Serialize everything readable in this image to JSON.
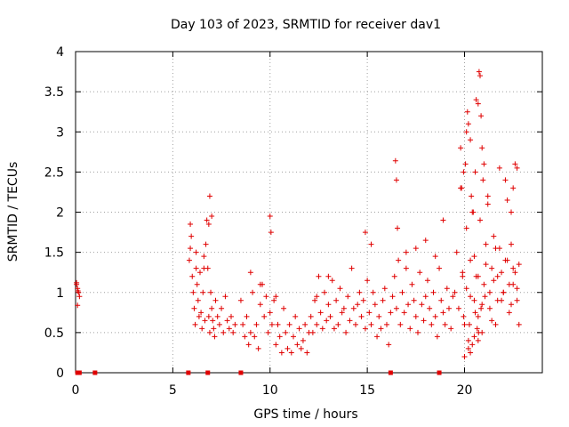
{
  "chart_data": {
    "type": "scatter",
    "title": "Day 103 of 2023, SRMTID for receiver dav1",
    "xlabel": "GPS time / hours",
    "ylabel": "SRMTID / TECUs",
    "xlim": [
      0,
      24
    ],
    "ylim": [
      0,
      4
    ],
    "xticks": [
      0,
      5,
      10,
      15,
      20
    ],
    "xtick_labels": [
      "0",
      "5",
      "10",
      "15",
      "20"
    ],
    "yticks": [
      0,
      0.5,
      1,
      1.5,
      2,
      2.5,
      3,
      3.5,
      4
    ],
    "ytick_labels": [
      "0",
      "0.5",
      "1",
      "1.5",
      "2",
      "2.5",
      "3",
      "3.5",
      "4"
    ],
    "grid": true,
    "series": [
      {
        "name": "SRMTID",
        "color": "#e00000",
        "marker": "+",
        "x": [
          0.05,
          0.1,
          0.15,
          0.2,
          0.05,
          0.1,
          0.12,
          5.85,
          5.9,
          5.95,
          6.0,
          6.05,
          6.1,
          6.15,
          6.2,
          6.25,
          6.3,
          6.35,
          6.4,
          6.45,
          6.5,
          6.55,
          6.6,
          6.65,
          6.7,
          6.75,
          6.8,
          6.85,
          6.9,
          6.95,
          7.0,
          7.05,
          7.1,
          7.15,
          7.2,
          7.3,
          7.4,
          7.5,
          7.6,
          7.7,
          7.8,
          7.9,
          8.0,
          8.1,
          8.2,
          5.9,
          6.2,
          6.6,
          6.9,
          6.85,
          7.0,
          8.5,
          8.6,
          8.7,
          8.8,
          8.9,
          9.0,
          9.1,
          9.2,
          9.3,
          9.4,
          9.5,
          9.6,
          9.7,
          9.8,
          9.9,
          10.0,
          10.1,
          10.2,
          10.3,
          10.4,
          10.5,
          10.6,
          10.7,
          10.8,
          10.9,
          11.0,
          11.1,
          11.2,
          11.3,
          11.4,
          11.5,
          11.6,
          11.7,
          11.8,
          11.9,
          12.0,
          9.0,
          9.5,
          10.0,
          10.05,
          10.3,
          12.1,
          12.2,
          12.3,
          12.4,
          12.5,
          12.6,
          12.7,
          12.8,
          12.9,
          13.0,
          13.1,
          13.2,
          13.3,
          13.4,
          13.5,
          13.6,
          13.7,
          13.8,
          13.9,
          14.0,
          14.1,
          14.2,
          14.3,
          14.4,
          14.5,
          14.6,
          14.7,
          14.8,
          14.9,
          15.0,
          15.1,
          15.2,
          15.3,
          15.4,
          15.5,
          15.6,
          15.7,
          15.8,
          15.9,
          16.0,
          16.1,
          16.2,
          14.9,
          15.2,
          13.0,
          12.4,
          16.3,
          16.4,
          16.5,
          16.6,
          16.7,
          16.8,
          16.9,
          17.0,
          17.1,
          17.2,
          17.3,
          17.4,
          17.5,
          17.6,
          17.7,
          17.8,
          17.9,
          18.0,
          18.1,
          18.2,
          18.3,
          18.4,
          18.5,
          18.6,
          18.7,
          18.8,
          18.9,
          19.0,
          19.1,
          19.2,
          19.3,
          19.4,
          16.45,
          16.5,
          16.55,
          17.0,
          17.5,
          18.0,
          18.5,
          18.9,
          19.5,
          19.6,
          19.7,
          19.8,
          19.9,
          20.0,
          20.1,
          20.2,
          20.3,
          20.4,
          20.5,
          20.6,
          20.7,
          20.8,
          20.9,
          21.0,
          21.1,
          21.2,
          21.3,
          21.4,
          21.5,
          21.6,
          21.7,
          21.8,
          21.9,
          22.0,
          22.1,
          22.2,
          22.3,
          22.4,
          22.5,
          22.6,
          22.7,
          22.8,
          19.8,
          19.85,
          19.95,
          20.05,
          20.1,
          20.15,
          20.2,
          20.3,
          20.35,
          20.45,
          20.55,
          20.6,
          20.7,
          20.75,
          20.8,
          20.85,
          20.9,
          20.95,
          21.0,
          20.2,
          20.3,
          20.5,
          20.65,
          20.7,
          20.72,
          20.0,
          20.4,
          21.2,
          21.8,
          22.2,
          22.4,
          22.6,
          22.7,
          22.5,
          19.9,
          20.1,
          20.3,
          20.5,
          20.7,
          20.9,
          21.1,
          21.3,
          21.5,
          21.7,
          21.9,
          22.1,
          22.3,
          22.5,
          22.7,
          19.95,
          20.25,
          20.55,
          20.85,
          21.05,
          21.4,
          21.6,
          22.0,
          22.4,
          22.8
        ],
        "y": [
          1.12,
          1.05,
          1.0,
          0.95,
          1.1,
          0.84,
          1.02,
          1.4,
          1.85,
          1.7,
          1.2,
          1.0,
          0.8,
          0.6,
          1.3,
          1.1,
          0.9,
          0.7,
          1.25,
          0.75,
          0.55,
          1.0,
          1.3,
          0.65,
          1.6,
          1.9,
          1.3,
          0.7,
          0.5,
          1.0,
          0.8,
          0.65,
          0.55,
          0.45,
          0.9,
          0.7,
          0.6,
          0.8,
          0.5,
          0.95,
          0.65,
          0.55,
          0.7,
          0.5,
          0.6,
          1.55,
          1.5,
          1.45,
          2.2,
          1.85,
          1.95,
          0.9,
          0.6,
          0.45,
          0.7,
          0.35,
          0.5,
          1.0,
          0.45,
          0.6,
          0.3,
          0.85,
          1.1,
          0.7,
          0.95,
          0.5,
          0.75,
          0.6,
          0.9,
          0.35,
          0.6,
          0.45,
          0.25,
          0.8,
          0.5,
          0.3,
          0.6,
          0.25,
          0.45,
          0.7,
          0.35,
          0.55,
          0.3,
          0.4,
          0.6,
          0.25,
          0.5,
          1.25,
          1.1,
          1.95,
          1.75,
          0.95,
          0.7,
          0.5,
          0.9,
          0.6,
          1.2,
          0.75,
          0.55,
          1.0,
          0.65,
          0.85,
          0.7,
          1.15,
          0.55,
          0.9,
          0.6,
          1.05,
          0.75,
          0.8,
          0.5,
          0.95,
          0.65,
          1.3,
          0.8,
          0.6,
          0.85,
          1.0,
          0.7,
          0.9,
          0.55,
          1.15,
          0.75,
          0.6,
          1.0,
          0.85,
          0.45,
          0.7,
          0.55,
          0.9,
          1.05,
          0.6,
          0.35,
          0.75,
          1.75,
          1.6,
          1.2,
          0.95,
          0.95,
          1.2,
          0.8,
          1.4,
          0.6,
          1.0,
          0.75,
          1.3,
          0.85,
          0.55,
          1.1,
          0.9,
          0.7,
          0.5,
          1.25,
          0.85,
          0.65,
          0.95,
          1.15,
          0.8,
          0.6,
          1.0,
          0.7,
          0.45,
          1.3,
          0.9,
          0.75,
          0.6,
          1.05,
          0.8,
          0.55,
          0.95,
          2.64,
          2.4,
          1.8,
          1.5,
          1.55,
          1.65,
          1.45,
          1.9,
          1.0,
          1.5,
          0.8,
          2.3,
          1.2,
          0.6,
          1.8,
          0.4,
          1.4,
          2.0,
          0.9,
          1.2,
          0.7,
          1.9,
          0.5,
          1.1,
          1.6,
          2.1,
          0.8,
          1.3,
          1.7,
          0.6,
          1.2,
          1.55,
          0.9,
          1.0,
          2.4,
          1.4,
          0.75,
          1.6,
          1.1,
          1.25,
          0.9,
          1.35,
          2.8,
          2.3,
          2.5,
          2.6,
          3.0,
          3.25,
          3.1,
          2.9,
          2.2,
          2.0,
          2.5,
          3.4,
          3.35,
          3.75,
          3.7,
          3.2,
          2.8,
          2.4,
          2.6,
          0.3,
          0.25,
          0.45,
          0.55,
          0.4,
          0.5,
          0.2,
          0.35,
          2.2,
          2.55,
          2.15,
          2.0,
          2.6,
          2.55,
          2.3,
          1.25,
          1.05,
          0.95,
          1.45,
          1.2,
          0.85,
          1.35,
          1.0,
          1.15,
          0.9,
          1.25,
          1.4,
          1.1,
          1.3,
          1.05,
          0.7,
          0.6,
          0.75,
          0.8,
          0.95,
          0.65,
          1.55,
          1.0,
          0.85,
          0.6
        ]
      }
    ],
    "zero_markers": {
      "color": "#e00000",
      "x": [
        0.1,
        0.2,
        1.0,
        5.8,
        6.8,
        8.5,
        16.2,
        18.7
      ]
    }
  }
}
